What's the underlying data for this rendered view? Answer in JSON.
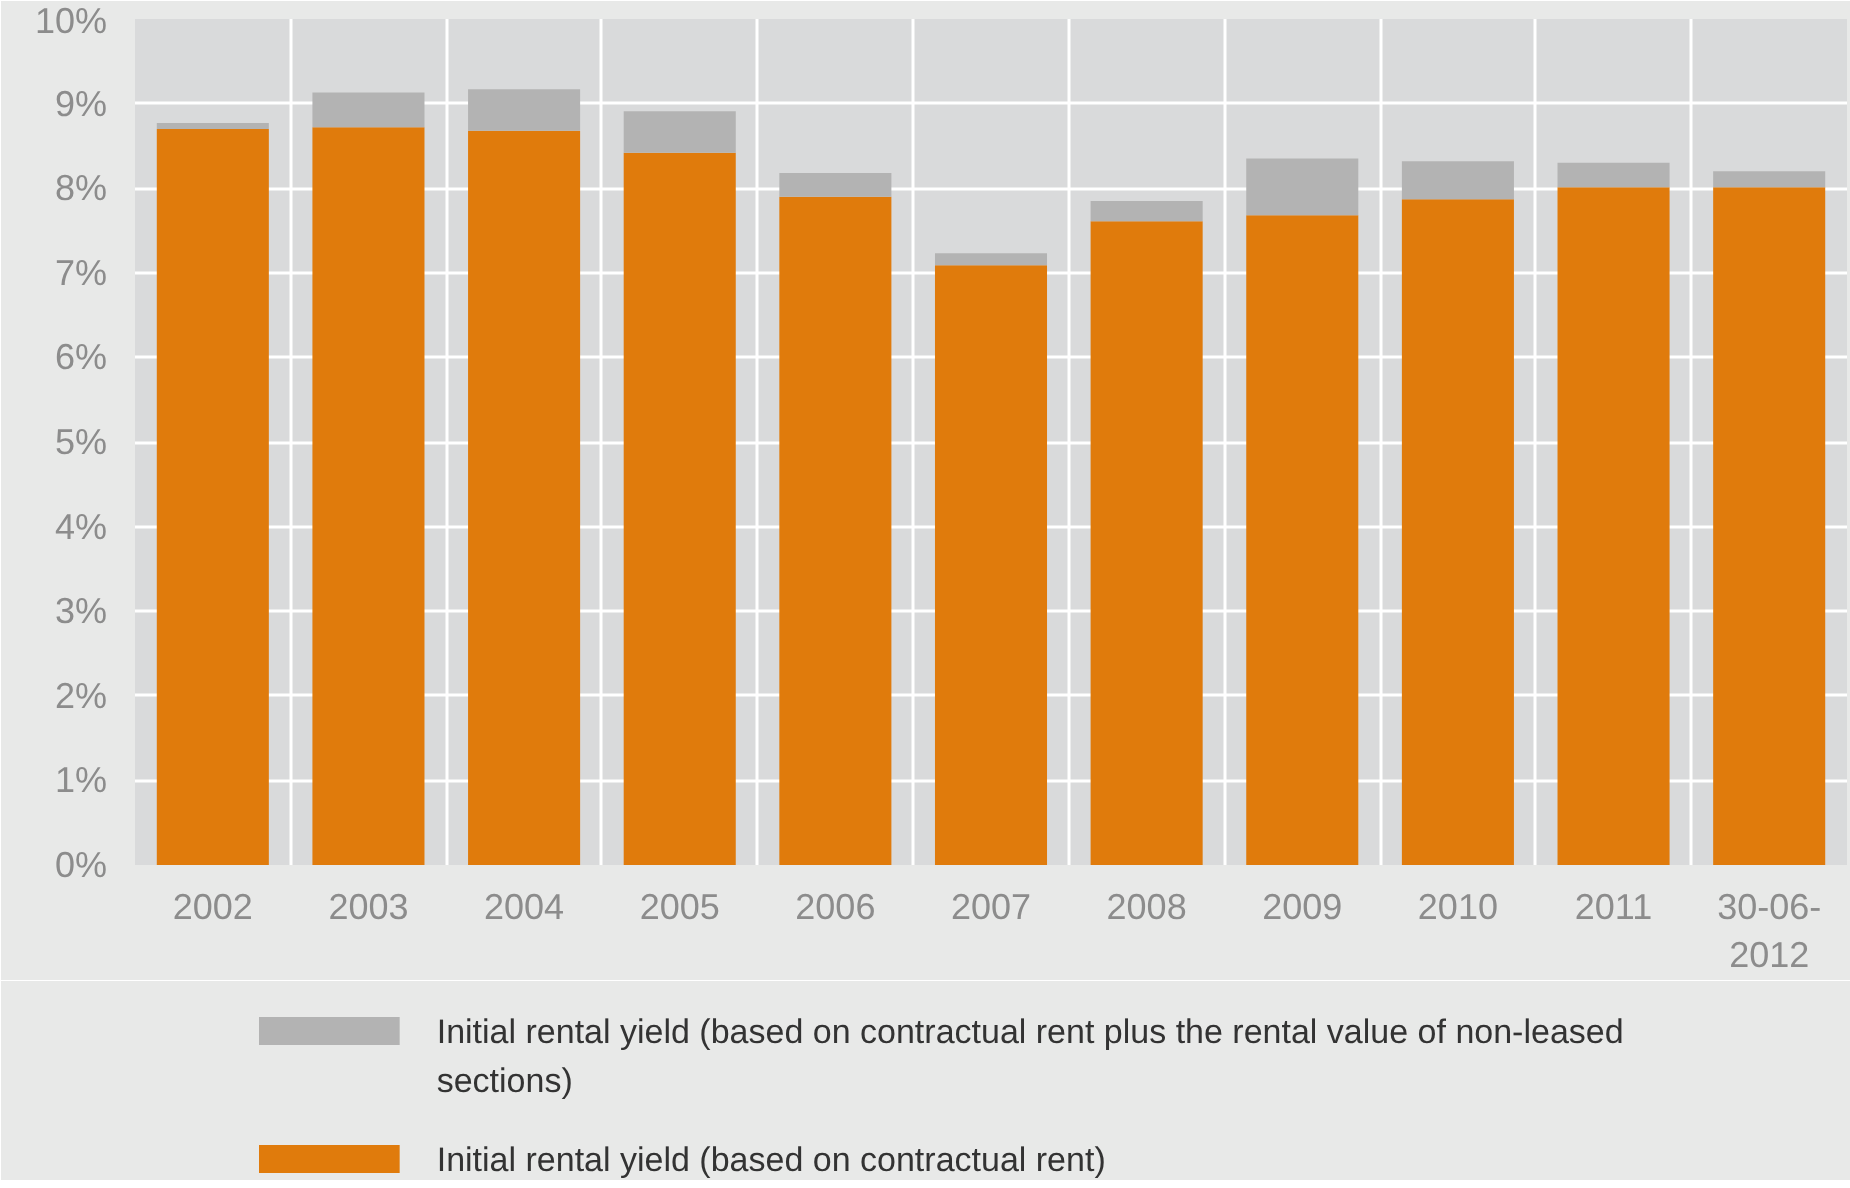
{
  "chart_data": {
    "type": "bar",
    "stacked": true,
    "categories": [
      "2002",
      "2003",
      "2004",
      "2005",
      "2006",
      "2007",
      "2008",
      "2009",
      "2010",
      "2011",
      "30-06-2012"
    ],
    "series": [
      {
        "name": "Initial rental yield (based on contractual rent)",
        "color": "#e07b0c",
        "values": [
          8.7,
          8.72,
          8.68,
          8.42,
          7.9,
          7.09,
          7.61,
          7.68,
          7.87,
          8.01,
          8.01
        ]
      },
      {
        "name": "Initial rental yield (based on contractual rent plus the rental value of non-leased sections)",
        "color": "#b3b3b3",
        "values": [
          0.07,
          0.41,
          0.49,
          0.49,
          0.28,
          0.14,
          0.24,
          0.67,
          0.45,
          0.29,
          0.19
        ]
      }
    ],
    "ylim": [
      0,
      10
    ],
    "yticks": [
      {
        "value": 0,
        "label": "0%"
      },
      {
        "value": 1,
        "label": "1%"
      },
      {
        "value": 2,
        "label": "2%"
      },
      {
        "value": 3,
        "label": "3%"
      },
      {
        "value": 4,
        "label": "4%"
      },
      {
        "value": 5,
        "label": "5%"
      },
      {
        "value": 6,
        "label": "6%"
      },
      {
        "value": 7,
        "label": "7%"
      },
      {
        "value": 8,
        "label": "8%"
      },
      {
        "value": 9,
        "label": "9%"
      },
      {
        "value": 10,
        "label": "10%"
      }
    ],
    "grid": true,
    "legend": "bottom"
  }
}
